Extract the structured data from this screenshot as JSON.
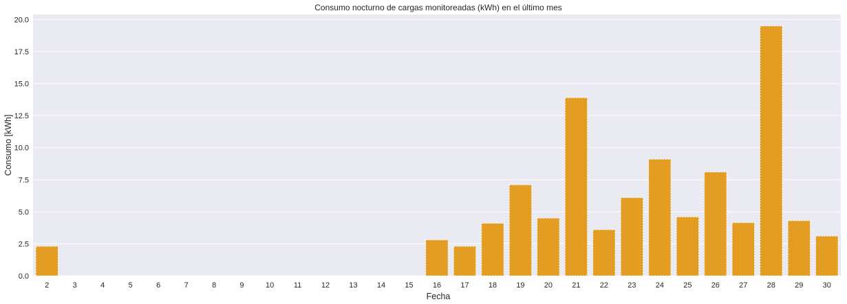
{
  "chart_data": {
    "type": "bar",
    "title": "Consumo nocturno de cargas monitoreadas (kWh) en el último mes",
    "xlabel": "Fecha",
    "ylabel": "Consumo [kWh]",
    "categories": [
      "2",
      "3",
      "4",
      "5",
      "6",
      "7",
      "8",
      "9",
      "10",
      "11",
      "12",
      "13",
      "14",
      "15",
      "16",
      "17",
      "18",
      "19",
      "20",
      "21",
      "22",
      "23",
      "24",
      "25",
      "26",
      "27",
      "28",
      "29",
      "30"
    ],
    "values": [
      2.3,
      0,
      0,
      0,
      0,
      0,
      0,
      0,
      0,
      0,
      0,
      0,
      0,
      0,
      2.8,
      2.3,
      4.1,
      7.1,
      4.5,
      13.9,
      3.6,
      6.1,
      9.1,
      4.6,
      8.1,
      4.15,
      19.5,
      4.3,
      3.1
    ],
    "ylim": [
      0,
      20.4
    ],
    "yticks": [
      "0.0",
      "2.5",
      "5.0",
      "7.5",
      "10.0",
      "12.5",
      "15.0",
      "17.5",
      "20.0"
    ],
    "grid": true,
    "colors": {
      "bar": "#e39d22",
      "plot_background": "#eaeaf2",
      "grid": "#ffffff"
    }
  }
}
